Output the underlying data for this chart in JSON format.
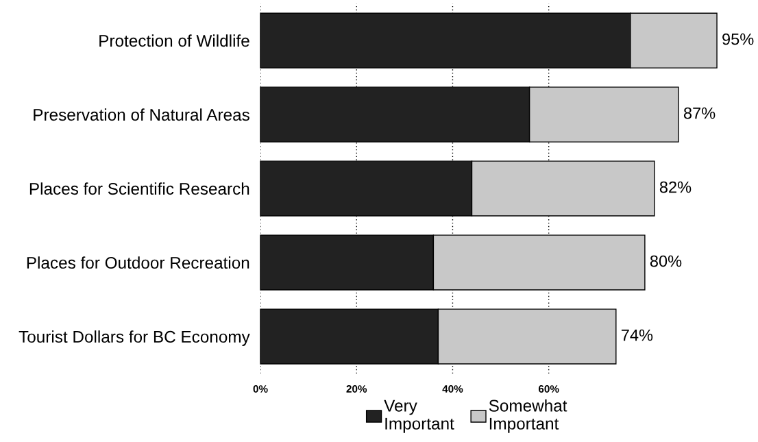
{
  "chart_data": {
    "type": "bar",
    "orientation": "horizontal",
    "stacked": true,
    "categories": [
      "Protection of Wildlife",
      "Preservation of Natural Areas",
      "Places for Scientific Research",
      "Places for Outdoor Recreation",
      "Tourist Dollars for BC Economy"
    ],
    "series": [
      {
        "name": "Very Important",
        "color": "#222222",
        "values": [
          77,
          56,
          44,
          36,
          37
        ]
      },
      {
        "name": "Somewhat Important",
        "color": "#c8c8c8",
        "values": [
          18,
          31,
          38,
          44,
          37
        ]
      }
    ],
    "totals": [
      "95%",
      "87%",
      "82%",
      "80%",
      "74%"
    ],
    "xlim": [
      0,
      95
    ],
    "xticks": [
      {
        "value": 0,
        "label": "0%"
      },
      {
        "value": 20,
        "label": "20%"
      },
      {
        "value": 40,
        "label": "40%"
      },
      {
        "value": 60,
        "label": "60%"
      }
    ],
    "grid": "x",
    "legend": "bottom"
  }
}
